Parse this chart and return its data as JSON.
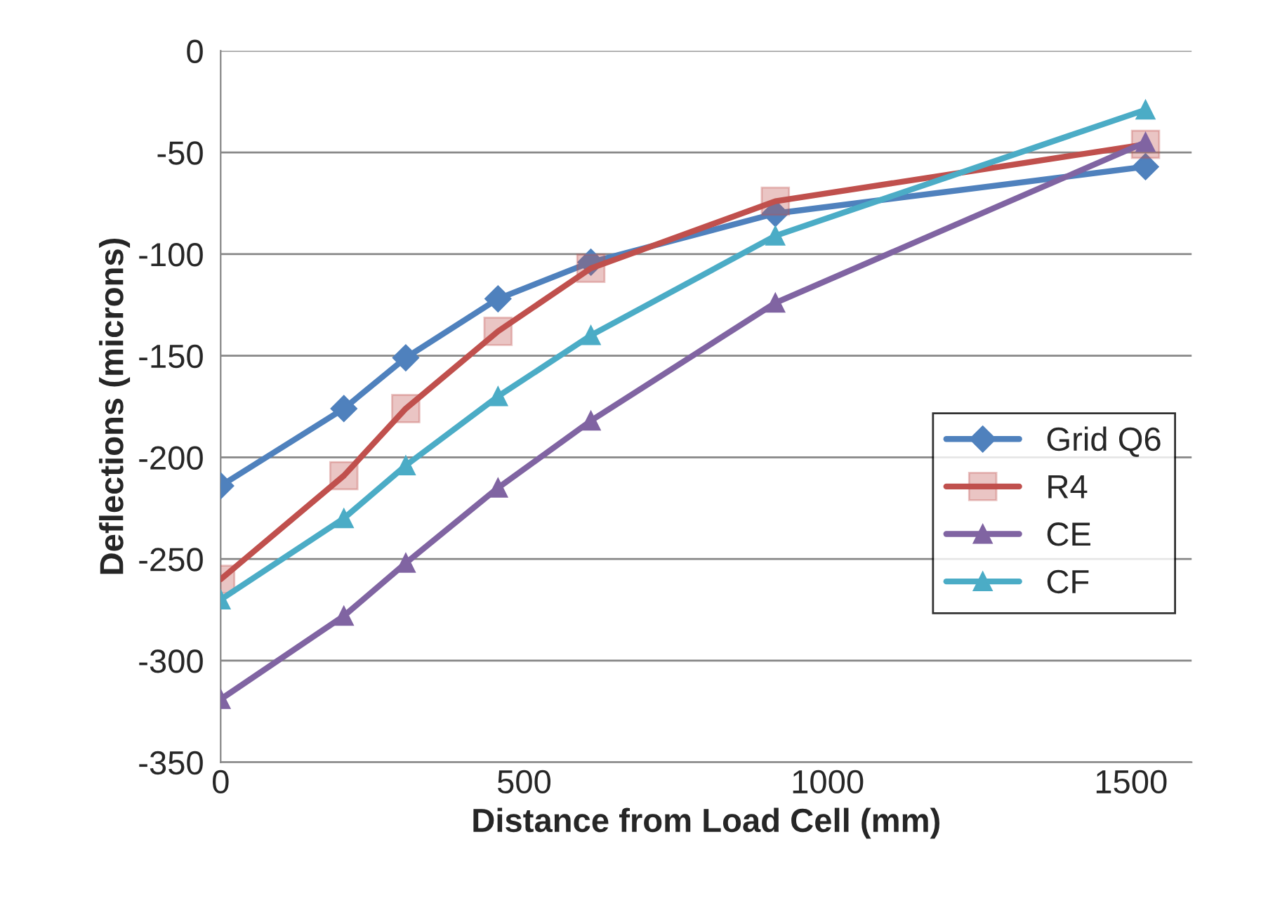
{
  "chart_data": {
    "type": "line",
    "xlabel": "Distance from Load Cell (mm)",
    "ylabel": "Deflections (microns)",
    "x": [
      0,
      203,
      305,
      457,
      610,
      914,
      1524
    ],
    "series": [
      {
        "name": "Grid Q6",
        "color": "#4f81bd",
        "marker": "diamond",
        "values": [
          -214,
          -176,
          -151,
          -122,
          -104,
          -80,
          -57
        ]
      },
      {
        "name": "R4",
        "color": "#c0504d",
        "marker": "square",
        "values": [
          -260,
          -209,
          -176,
          -138,
          -107,
          -74,
          -46
        ]
      },
      {
        "name": "CE",
        "color": "#8064a2",
        "marker": "triangle",
        "values": [
          -319,
          -278,
          -252,
          -215,
          -182,
          -124,
          -45
        ]
      },
      {
        "name": "CF",
        "color": "#4bacc6",
        "marker": "triangle",
        "values": [
          -270,
          -230,
          -204,
          -170,
          -140,
          -91,
          -29
        ]
      }
    ],
    "xlim": [
      0,
      1600
    ],
    "xticks": [
      0,
      500,
      1000,
      1500
    ],
    "ylim": [
      -350,
      0
    ],
    "yticks": [
      -350,
      -300,
      -250,
      -200,
      -150,
      -100,
      -50,
      0
    ],
    "grid": "y",
    "legend": "right"
  }
}
